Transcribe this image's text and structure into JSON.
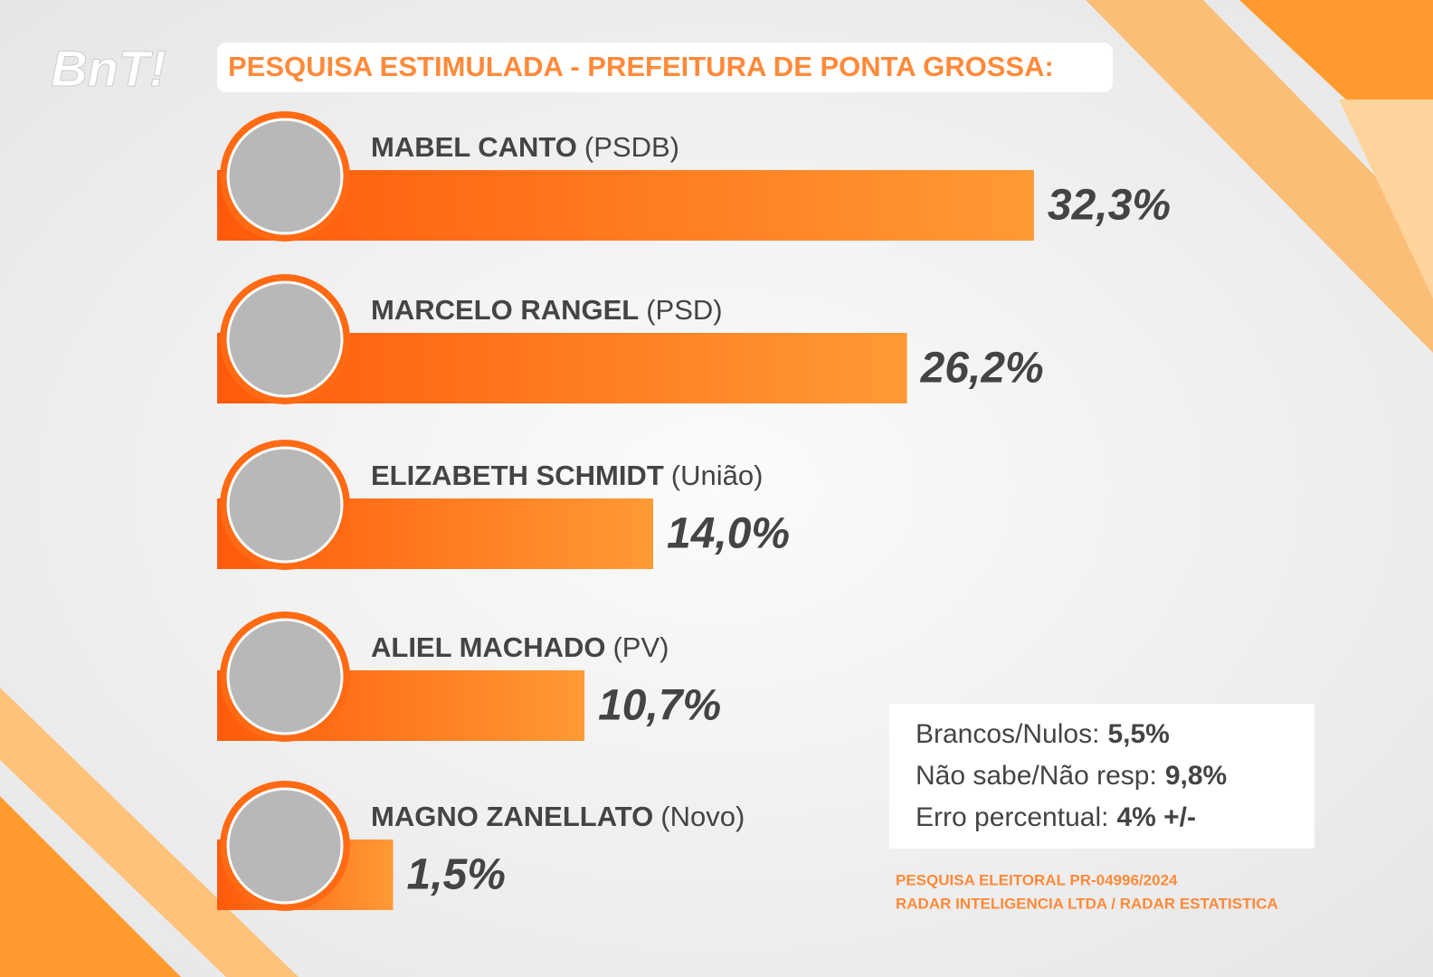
{
  "logo": "BnT!",
  "chart_data": {
    "type": "bar",
    "title": "PESQUISA ESTIMULADA - PREFEITURA DE PONTA GROSSA:",
    "categories": [
      "MABEL CANTO",
      "MARCELO RANGEL",
      "ELIZABETH SCHMIDT",
      "ALIEL MACHADO",
      "MAGNO  ZANELLATO"
    ],
    "parties": [
      "(PSDB)",
      "(PSD)",
      "(União)",
      "(PV)",
      "(Novo)"
    ],
    "values": [
      32.3,
      26.2,
      14.0,
      10.7,
      1.5
    ],
    "value_labels": [
      "32,3%",
      "26,2%",
      "14,0%",
      "10,7%",
      "1,5%"
    ],
    "color": "#ff6a13"
  },
  "notes": [
    {
      "label": "Brancos/Nulos:",
      "value": "5,5%"
    },
    {
      "label": "Não sabe/Não resp:",
      "value": "9,8%"
    },
    {
      "label": "Erro percentual:",
      "value": "4% +/-"
    }
  ],
  "source": [
    "PESQUISA ELEITORAL PR-04996/2024",
    "RADAR INTELIGENCIA LTDA / RADAR ESTATISTICA"
  ]
}
